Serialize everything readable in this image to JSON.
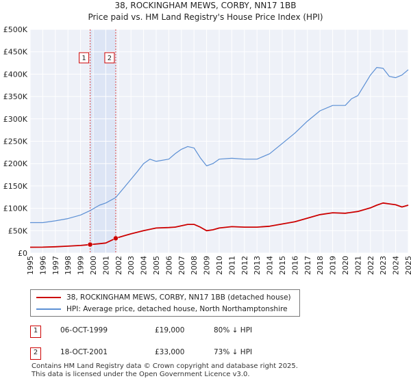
{
  "title": {
    "line1": "38, ROCKINGHAM MEWS, CORBY, NN17 1BB",
    "line2": "Price paid vs. HM Land Registry's House Price Index (HPI)"
  },
  "chart_data": {
    "type": "line",
    "ylim": [
      0,
      500000
    ],
    "xlim": [
      1995.0,
      2025.0
    ],
    "yticks": [
      0,
      50000,
      100000,
      150000,
      200000,
      250000,
      300000,
      350000,
      400000,
      450000,
      500000
    ],
    "ytick_labels": [
      "£0",
      "£50K",
      "£100K",
      "£150K",
      "£200K",
      "£250K",
      "£300K",
      "£350K",
      "£400K",
      "£450K",
      "£500K"
    ],
    "xticks": [
      1995,
      1996,
      1997,
      1998,
      1999,
      2000,
      2001,
      2002,
      2003,
      2004,
      2005,
      2006,
      2007,
      2008,
      2009,
      2010,
      2011,
      2012,
      2013,
      2014,
      2015,
      2016,
      2017,
      2018,
      2019,
      2020,
      2021,
      2022,
      2023,
      2024,
      2025
    ],
    "xtick_labels": [
      "1995",
      "1996",
      "1997",
      "1998",
      "1999",
      "2000",
      "2001",
      "2002",
      "2003",
      "2004",
      "2005",
      "2006",
      "2007",
      "2008",
      "2009",
      "2010",
      "2011",
      "2012",
      "2013",
      "2014",
      "2015",
      "2016",
      "2017",
      "2018",
      "2019",
      "2020",
      "2021",
      "2022",
      "2023",
      "2024",
      "2025"
    ],
    "grid": true,
    "shaded_period": [
      1999.76,
      2001.79
    ],
    "series": [
      {
        "name": "38, ROCKINGHAM MEWS, CORBY, NN17 1BB (detached house)",
        "color": "#cc0000",
        "x": [
          1995.0,
          1996.0,
          1997.0,
          1998.0,
          1999.0,
          1999.76,
          2000.5,
          2001.0,
          2001.79,
          2002.5,
          2003.0,
          2004.0,
          2005.0,
          2006.0,
          2006.5,
          2007.0,
          2007.5,
          2008.0,
          2008.5,
          2009.0,
          2009.5,
          2010.0,
          2011.0,
          2012.0,
          2013.0,
          2014.0,
          2015.0,
          2016.0,
          2017.0,
          2018.0,
          2019.0,
          2020.0,
          2021.0,
          2022.0,
          2022.5,
          2023.0,
          2023.5,
          2024.0,
          2024.5,
          2025.0
        ],
        "values": [
          13000,
          13200,
          14000,
          15500,
          17000,
          19000,
          21000,
          22500,
          33000,
          39000,
          43000,
          50000,
          56000,
          57000,
          58000,
          61000,
          64000,
          64000,
          58000,
          50000,
          52000,
          56000,
          59000,
          58000,
          58000,
          60000,
          65000,
          70000,
          78000,
          86000,
          90000,
          89000,
          93000,
          101000,
          107000,
          112000,
          110000,
          108000,
          103000,
          107000
        ]
      },
      {
        "name": "HPI: Average price, detached house, North Northamptonshire",
        "color": "#5b8fd4",
        "x": [
          1995.0,
          1996.0,
          1997.0,
          1998.0,
          1999.0,
          1999.76,
          2000.5,
          2001.0,
          2001.79,
          2002.5,
          2003.0,
          2003.5,
          2004.0,
          2004.5,
          2005.0,
          2006.0,
          2006.5,
          2007.0,
          2007.5,
          2008.0,
          2008.5,
          2009.0,
          2009.5,
          2010.0,
          2011.0,
          2012.0,
          2013.0,
          2014.0,
          2015.0,
          2016.0,
          2017.0,
          2018.0,
          2019.0,
          2020.0,
          2020.5,
          2021.0,
          2021.5,
          2022.0,
          2022.5,
          2023.0,
          2023.5,
          2024.0,
          2024.5,
          2025.0
        ],
        "values": [
          68000,
          68000,
          72000,
          77000,
          85000,
          95000,
          107000,
          112000,
          124000,
          148000,
          165000,
          182000,
          200000,
          210000,
          205000,
          210000,
          222000,
          232000,
          238000,
          235000,
          213000,
          195000,
          200000,
          210000,
          212000,
          210000,
          210000,
          222000,
          245000,
          268000,
          295000,
          318000,
          330000,
          330000,
          345000,
          352000,
          375000,
          398000,
          415000,
          413000,
          395000,
          392000,
          398000,
          410000
        ]
      }
    ],
    "sales": [
      {
        "label": "1",
        "x": 1999.76,
        "value": 19000
      },
      {
        "label": "2",
        "x": 2001.79,
        "value": 33000
      }
    ]
  },
  "legend": {
    "property_label": "38, ROCKINGHAM MEWS, CORBY, NN17 1BB (detached house)",
    "hpi_label": "HPI: Average price, detached house, North Northamptonshire"
  },
  "sales_table": [
    {
      "num": "1",
      "date": "06-OCT-1999",
      "price": "£19,000",
      "hpi": "80% ↓ HPI"
    },
    {
      "num": "2",
      "date": "18-OCT-2001",
      "price": "£33,000",
      "hpi": "73% ↓ HPI"
    }
  ],
  "footer": {
    "line1": "Contains HM Land Registry data © Crown copyright and database right 2025.",
    "line2": "This data is licensed under the Open Government Licence v3.0."
  }
}
